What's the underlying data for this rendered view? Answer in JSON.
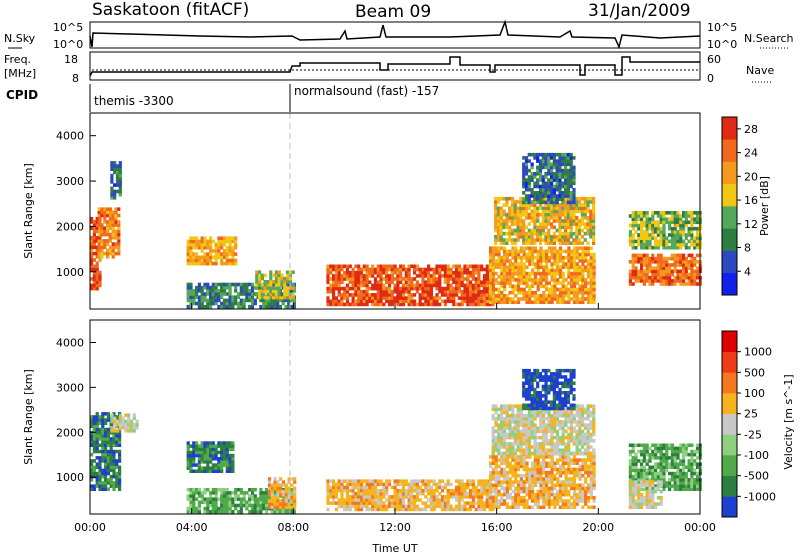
{
  "header": {
    "station": "Saskatoon (fitACF)",
    "beam": "Beam 09",
    "date": "31/Jan/2009"
  },
  "top_panels": {
    "nsky_label": "N.Sky",
    "nsky_ticks": [
      "10^5",
      "10^0"
    ],
    "freq_label_1": "Freq.",
    "freq_label_2": "[MHz]",
    "freq_ticks": [
      "18",
      "8"
    ],
    "cpid_label": "CPID",
    "nsearch_label": "N.Search",
    "nsearch_ticks": [
      "10^5",
      "10^0"
    ],
    "nave_label": "Nave",
    "nave_ticks": [
      "60",
      "0"
    ],
    "cpid_segments": [
      "themis -3300",
      "normalsound (fast) -157"
    ]
  },
  "chart_data": [
    {
      "type": "heatmap",
      "title": "",
      "xlabel": "Time UT",
      "ylabel": "Slant Range [km]",
      "x_ticks": [
        "00:00",
        "04:00",
        "08:00",
        "12:00",
        "16:00",
        "20:00",
        "00:00"
      ],
      "xlim": [
        0,
        24
      ],
      "y_ticks": [
        "1000",
        "2000",
        "3000",
        "4000"
      ],
      "ylim": [
        180,
        4500
      ],
      "colorbar": {
        "label": "Power [dB]",
        "ticks": [
          "4",
          "8",
          "12",
          "16",
          "20",
          "24",
          "28"
        ],
        "range": [
          0,
          30
        ],
        "colors": [
          "#1022e8",
          "#2e48c0",
          "#2e7d42",
          "#55a85a",
          "#f0c814",
          "#f59a1e",
          "#f06a1e",
          "#e02a14"
        ]
      },
      "blobs": [
        {
          "t0": 0.0,
          "t1": 0.35,
          "r0": 600,
          "r1": 2200,
          "v": 26
        },
        {
          "t0": 0.3,
          "t1": 1.1,
          "r0": 1300,
          "r1": 2400,
          "v": 22
        },
        {
          "t0": 0.8,
          "t1": 1.2,
          "r0": 2600,
          "r1": 3400,
          "v": 8
        },
        {
          "t0": 3.8,
          "t1": 5.7,
          "r0": 1150,
          "r1": 1750,
          "v": 20
        },
        {
          "t0": 3.8,
          "t1": 8.0,
          "r0": 200,
          "r1": 700,
          "v": 10
        },
        {
          "t0": 6.5,
          "t1": 8.0,
          "r0": 400,
          "r1": 1000,
          "v": 16
        },
        {
          "t0": 9.3,
          "t1": 15.8,
          "r0": 250,
          "r1": 1100,
          "v": 26
        },
        {
          "t0": 15.7,
          "t1": 19.8,
          "r0": 300,
          "r1": 1500,
          "v": 20
        },
        {
          "t0": 15.9,
          "t1": 19.8,
          "r0": 1600,
          "r1": 2600,
          "v": 18
        },
        {
          "t0": 17.0,
          "t1": 19.0,
          "r0": 2500,
          "r1": 3600,
          "v": 8
        },
        {
          "t0": 21.2,
          "t1": 24.0,
          "r0": 700,
          "r1": 1400,
          "v": 24
        },
        {
          "t0": 21.2,
          "t1": 24.0,
          "r0": 1500,
          "r1": 2300,
          "v": 14
        }
      ]
    },
    {
      "type": "heatmap",
      "title": "",
      "xlabel": "Time UT",
      "ylabel": "Slant Range [km]",
      "x_ticks": [
        "00:00",
        "04:00",
        "08:00",
        "12:00",
        "16:00",
        "20:00",
        "00:00"
      ],
      "xlim": [
        0,
        24
      ],
      "y_ticks": [
        "1000",
        "2000",
        "3000",
        "4000"
      ],
      "ylim": [
        180,
        4500
      ],
      "colorbar": {
        "label": "Velocity [m s^-1]",
        "ticks": [
          "1000",
          "500",
          "100",
          "25",
          "-25",
          "-100",
          "-500",
          "-1000"
        ],
        "colors": [
          "#1f3fd0",
          "#2e7d42",
          "#4faa4a",
          "#8fd080",
          "#c8c8c8",
          "#f5b41e",
          "#f5781e",
          "#f03c14",
          "#e00000"
        ]
      },
      "blobs": [
        {
          "t0": 0.0,
          "t1": 1.2,
          "r0": 700,
          "r1": 2400,
          "v": 1
        },
        {
          "t0": 0.8,
          "t1": 1.8,
          "r0": 2000,
          "r1": 2400,
          "v": 4
        },
        {
          "t0": 3.8,
          "t1": 5.6,
          "r0": 1100,
          "r1": 1800,
          "v": 1
        },
        {
          "t0": 3.8,
          "t1": 8.0,
          "r0": 200,
          "r1": 700,
          "v": 2
        },
        {
          "t0": 7.0,
          "t1": 8.0,
          "r0": 300,
          "r1": 1000,
          "v": 5
        },
        {
          "t0": 9.3,
          "t1": 15.8,
          "r0": 250,
          "r1": 900,
          "v": 5
        },
        {
          "t0": 15.7,
          "t1": 19.8,
          "r0": 300,
          "r1": 1500,
          "v": 5
        },
        {
          "t0": 15.8,
          "t1": 19.8,
          "r0": 1500,
          "r1": 2600,
          "v": 4
        },
        {
          "t0": 17.0,
          "t1": 19.0,
          "r0": 2500,
          "r1": 3400,
          "v": 0
        },
        {
          "t0": 21.2,
          "t1": 24.0,
          "r0": 700,
          "r1": 1700,
          "v": 2
        },
        {
          "t0": 21.2,
          "t1": 22.5,
          "r0": 300,
          "r1": 900,
          "v": 4
        }
      ]
    }
  ]
}
